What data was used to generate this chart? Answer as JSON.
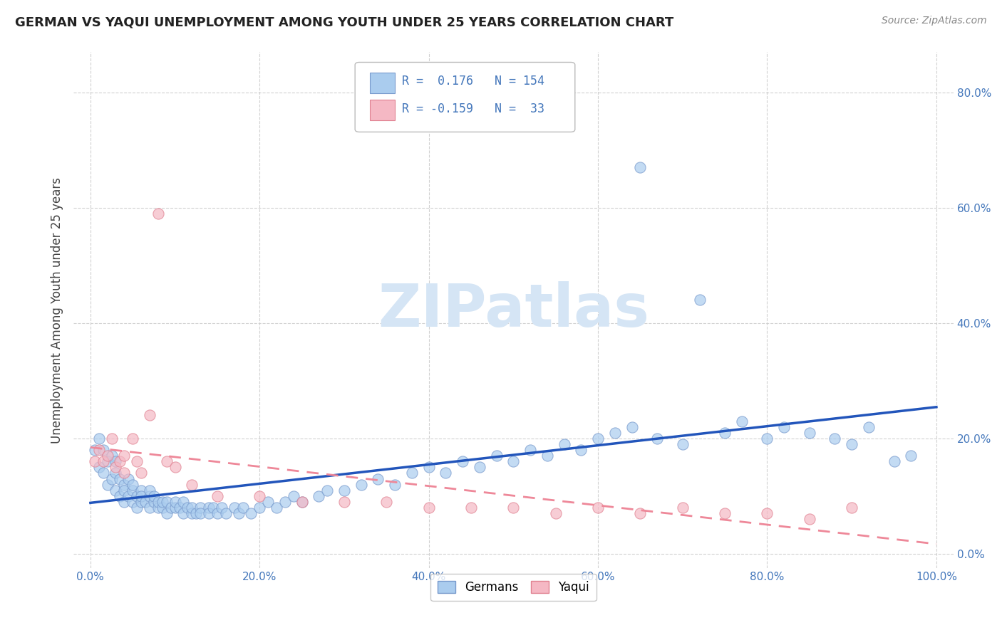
{
  "title": "GERMAN VS YAQUI UNEMPLOYMENT AMONG YOUTH UNDER 25 YEARS CORRELATION CHART",
  "source": "Source: ZipAtlas.com",
  "ylabel": "Unemployment Among Youth under 25 years",
  "xlim": [
    -0.02,
    1.02
  ],
  "ylim": [
    -0.025,
    0.87
  ],
  "xticks": [
    0.0,
    0.2,
    0.4,
    0.6,
    0.8,
    1.0
  ],
  "xticklabels": [
    "0.0%",
    "20.0%",
    "40.0%",
    "60.0%",
    "80.0%",
    "100.0%"
  ],
  "yticks": [
    0.0,
    0.2,
    0.4,
    0.6,
    0.8
  ],
  "yticklabels": [
    "0.0%",
    "20.0%",
    "40.0%",
    "60.0%",
    "80.0%"
  ],
  "german_color": "#aaccee",
  "german_edge_color": "#7799cc",
  "yaqui_color": "#f5b8c4",
  "yaqui_edge_color": "#e08090",
  "german_line_color": "#2255bb",
  "yaqui_line_color": "#ee8899",
  "german_R": 0.176,
  "german_N": 154,
  "yaqui_R": -0.159,
  "yaqui_N": 33,
  "background_color": "#ffffff",
  "grid_color": "#cccccc",
  "watermark_color": "#d5e5f5",
  "tick_color": "#4477bb",
  "german_scatter_x": [
    0.005,
    0.01,
    0.01,
    0.015,
    0.015,
    0.02,
    0.02,
    0.025,
    0.025,
    0.03,
    0.03,
    0.03,
    0.035,
    0.035,
    0.04,
    0.04,
    0.04,
    0.045,
    0.045,
    0.05,
    0.05,
    0.05,
    0.055,
    0.055,
    0.06,
    0.06,
    0.06,
    0.065,
    0.07,
    0.07,
    0.07,
    0.075,
    0.075,
    0.08,
    0.08,
    0.085,
    0.085,
    0.09,
    0.09,
    0.095,
    0.1,
    0.1,
    0.105,
    0.11,
    0.11,
    0.115,
    0.12,
    0.12,
    0.125,
    0.13,
    0.13,
    0.14,
    0.14,
    0.145,
    0.15,
    0.155,
    0.16,
    0.17,
    0.175,
    0.18,
    0.19,
    0.2,
    0.21,
    0.22,
    0.23,
    0.24,
    0.25,
    0.27,
    0.28,
    0.3,
    0.32,
    0.34,
    0.36,
    0.38,
    0.4,
    0.42,
    0.44,
    0.46,
    0.48,
    0.5,
    0.52,
    0.54,
    0.56,
    0.58,
    0.6,
    0.62,
    0.64,
    0.65,
    0.67,
    0.7,
    0.72,
    0.75,
    0.77,
    0.8,
    0.82,
    0.85,
    0.88,
    0.9,
    0.92,
    0.95,
    0.97
  ],
  "german_scatter_y": [
    0.18,
    0.15,
    0.2,
    0.14,
    0.18,
    0.12,
    0.16,
    0.13,
    0.17,
    0.11,
    0.14,
    0.16,
    0.1,
    0.13,
    0.09,
    0.12,
    0.11,
    0.1,
    0.13,
    0.09,
    0.11,
    0.12,
    0.08,
    0.1,
    0.09,
    0.11,
    0.1,
    0.09,
    0.08,
    0.1,
    0.11,
    0.09,
    0.1,
    0.08,
    0.09,
    0.08,
    0.09,
    0.07,
    0.09,
    0.08,
    0.08,
    0.09,
    0.08,
    0.07,
    0.09,
    0.08,
    0.07,
    0.08,
    0.07,
    0.08,
    0.07,
    0.08,
    0.07,
    0.08,
    0.07,
    0.08,
    0.07,
    0.08,
    0.07,
    0.08,
    0.07,
    0.08,
    0.09,
    0.08,
    0.09,
    0.1,
    0.09,
    0.1,
    0.11,
    0.11,
    0.12,
    0.13,
    0.12,
    0.14,
    0.15,
    0.14,
    0.16,
    0.15,
    0.17,
    0.16,
    0.18,
    0.17,
    0.19,
    0.18,
    0.2,
    0.21,
    0.22,
    0.67,
    0.2,
    0.19,
    0.44,
    0.21,
    0.23,
    0.2,
    0.22,
    0.21,
    0.2,
    0.19,
    0.22,
    0.16,
    0.17
  ],
  "yaqui_scatter_x": [
    0.005,
    0.01,
    0.015,
    0.02,
    0.025,
    0.03,
    0.035,
    0.04,
    0.04,
    0.05,
    0.055,
    0.06,
    0.07,
    0.08,
    0.09,
    0.1,
    0.12,
    0.15,
    0.2,
    0.25,
    0.3,
    0.35,
    0.4,
    0.45,
    0.5,
    0.55,
    0.6,
    0.65,
    0.7,
    0.75,
    0.8,
    0.85,
    0.9
  ],
  "yaqui_scatter_y": [
    0.16,
    0.18,
    0.16,
    0.17,
    0.2,
    0.15,
    0.16,
    0.14,
    0.17,
    0.2,
    0.16,
    0.14,
    0.24,
    0.59,
    0.16,
    0.15,
    0.12,
    0.1,
    0.1,
    0.09,
    0.09,
    0.09,
    0.08,
    0.08,
    0.08,
    0.07,
    0.08,
    0.07,
    0.08,
    0.07,
    0.07,
    0.06,
    0.08
  ]
}
